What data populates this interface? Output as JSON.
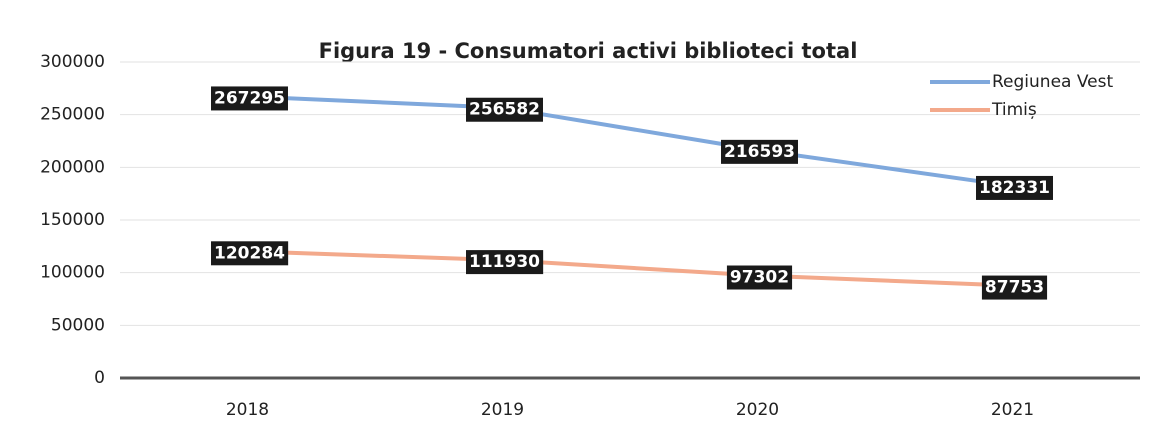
{
  "chart_data": {
    "type": "line",
    "title": "Figura 19 - Consumatori activi biblioteci total",
    "categories": [
      "2018",
      "2019",
      "2020",
      "2021"
    ],
    "series": [
      {
        "name": "Regiunea Vest",
        "color": "#7fa8dc",
        "values": [
          267295,
          256582,
          216593,
          182331
        ]
      },
      {
        "name": "Timiș",
        "color": "#f3a98b",
        "values": [
          120284,
          111930,
          97302,
          87753
        ]
      }
    ],
    "ylim": [
      0,
      300000
    ],
    "yticks": [
      0,
      50000,
      100000,
      150000,
      200000,
      250000,
      300000
    ],
    "grid": true,
    "legend": "top-right"
  }
}
